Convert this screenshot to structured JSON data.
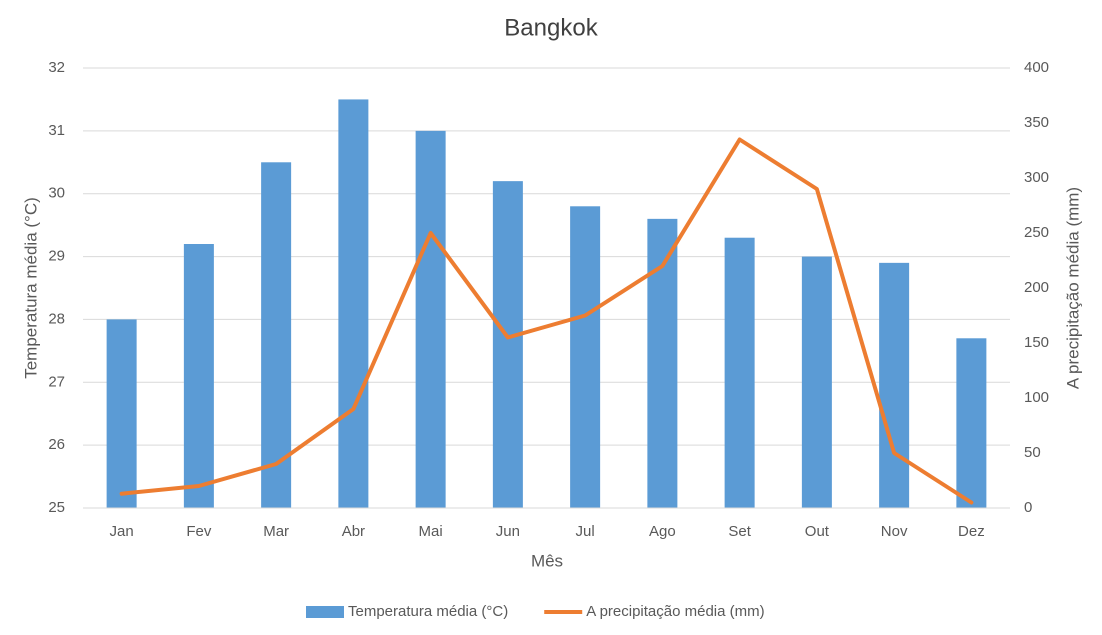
{
  "chart_data": {
    "type": "combo",
    "title": "Bangkok",
    "x_label": "Mês",
    "y_label": "Temperatura média (°C)",
    "y2_label": "A precipitação média (mm)",
    "categories": [
      "Jan",
      "Fev",
      "Mar",
      "Abr",
      "Mai",
      "Jun",
      "Jul",
      "Ago",
      "Set",
      "Out",
      "Nov",
      "Dez"
    ],
    "series": [
      {
        "name": "Temperatura média (°C)",
        "type": "bar",
        "color": "#5b9bd5",
        "axis": "y",
        "values": [
          28,
          29.2,
          30.5,
          31.5,
          31,
          30.2,
          29.8,
          29.6,
          29.3,
          29,
          28.9,
          27.7
        ]
      },
      {
        "name": "A precipitação média (mm)",
        "type": "line",
        "color": "#ed7d31",
        "axis": "y2",
        "values": [
          13,
          20,
          40,
          90,
          250,
          155,
          175,
          220,
          335,
          290,
          50,
          5
        ]
      }
    ],
    "ylim": [
      25,
      32
    ],
    "yticks": [
      25,
      26,
      27,
      28,
      29,
      30,
      31,
      32
    ],
    "y2lim": [
      0,
      400
    ],
    "y2ticks": [
      0,
      50,
      100,
      150,
      200,
      250,
      300,
      350,
      400
    ],
    "grid": true,
    "legend": "bottom"
  }
}
